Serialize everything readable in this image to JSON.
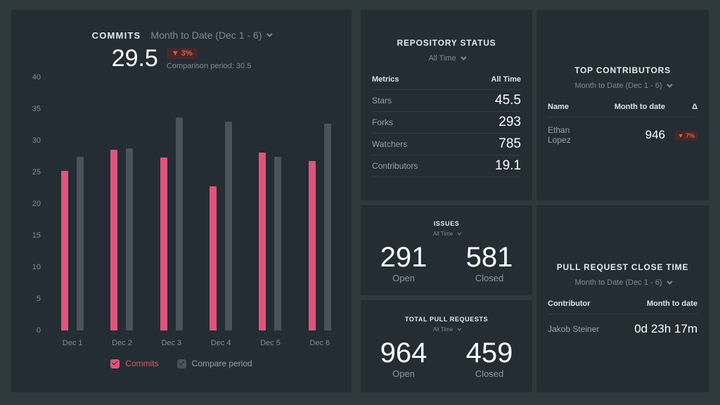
{
  "colors": {
    "background": "#2d393c",
    "panel": "#232d33",
    "accent_pink": "#e0547a",
    "compare_grey": "#4a525c",
    "badge_bg": "#46282a",
    "badge_text": "#e0584c"
  },
  "commits_panel": {
    "title": "COMMITS",
    "period_label": "Month to Date (Dec 1 - 6)",
    "value": "29.5",
    "delta_badge": "▼ 3%",
    "comparison_note": "Comparison period: 30.5",
    "legend": [
      {
        "label": "Commits",
        "color": "#e0547a"
      },
      {
        "label": "Compare period",
        "color": "#4a525c"
      }
    ]
  },
  "chart_data": {
    "type": "bar",
    "title": "COMMITS",
    "categories": [
      "Dec 1",
      "Dec 2",
      "Dec 3",
      "Dec 4",
      "Dec 5",
      "Dec 6"
    ],
    "series": [
      {
        "name": "Commits",
        "color": "#e0547a",
        "values": [
          25.2,
          28.6,
          27.3,
          22.8,
          28.1,
          26.8
        ]
      },
      {
        "name": "Compare period",
        "color": "#4a525c",
        "values": [
          27.4,
          28.8,
          33.7,
          33.0,
          27.5,
          32.7
        ]
      }
    ],
    "xlabel": "",
    "ylabel": "",
    "ylim": [
      0,
      40
    ],
    "yticks": [
      0,
      5,
      10,
      15,
      20,
      25,
      30,
      35,
      40
    ],
    "grid": false,
    "legend_position": "bottom"
  },
  "repository_status": {
    "title": "REPOSITORY STATUS",
    "period_label": "All Time",
    "columns": {
      "metric": "Metrics",
      "value": "All Time"
    },
    "rows": [
      {
        "label": "Stars",
        "value": "45.5"
      },
      {
        "label": "Forks",
        "value": "293"
      },
      {
        "label": "Watchers",
        "value": "785"
      },
      {
        "label": "Contributors",
        "value": "19.1"
      }
    ]
  },
  "issues": {
    "title": "ISSUES",
    "period_label": "All Time",
    "open": {
      "value": "291",
      "label": "Open"
    },
    "closed": {
      "value": "581",
      "label": "Closed"
    }
  },
  "total_pull_requests": {
    "title": "TOTAL PULL REQUESTS",
    "period_label": "All Time",
    "open": {
      "value": "964",
      "label": "Open"
    },
    "closed": {
      "value": "459",
      "label": "Closed"
    }
  },
  "top_contributors": {
    "title": "TOP CONTRIBUTORS",
    "period_label": "Month to Date (Dec 1 - 6)",
    "columns": {
      "name": "Name",
      "value": "Month to date",
      "delta": "Δ"
    },
    "rows": [
      {
        "name": "Ethan Lopez",
        "value": "946",
        "delta": "▼ 7%"
      }
    ]
  },
  "pull_request_close_time": {
    "title": "PULL REQUEST CLOSE TIME",
    "period_label": "Month to Date (Dec 1 - 6)",
    "columns": {
      "name": "Contributor",
      "value": "Month to date"
    },
    "rows": [
      {
        "name": "Jakob Steiner",
        "value": "0d 23h 17m"
      }
    ]
  }
}
